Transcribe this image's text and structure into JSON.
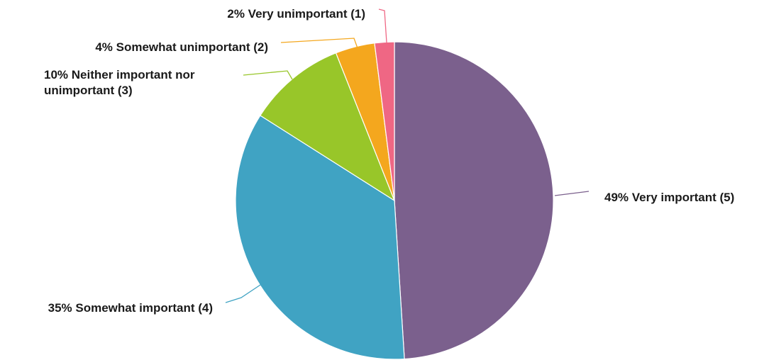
{
  "chart_data": {
    "type": "pie",
    "start_angle_deg": 0,
    "direction": "clockwise",
    "slices": [
      {
        "label_lines": [
          "49% Very important (5)"
        ],
        "value": 49,
        "color": "#7b608d"
      },
      {
        "label_lines": [
          "35% Somewhat important (4)"
        ],
        "value": 35,
        "color": "#40a3c3"
      },
      {
        "label_lines": [
          "10% Neither important nor",
          "unimportant (3)"
        ],
        "value": 10,
        "color": "#98c629"
      },
      {
        "label_lines": [
          "4% Somewhat unimportant (2)"
        ],
        "value": 4,
        "color": "#f4a71e"
      },
      {
        "label_lines": [
          "2% Very unimportant (1)"
        ],
        "value": 2,
        "color": "#ef6784"
      }
    ]
  }
}
